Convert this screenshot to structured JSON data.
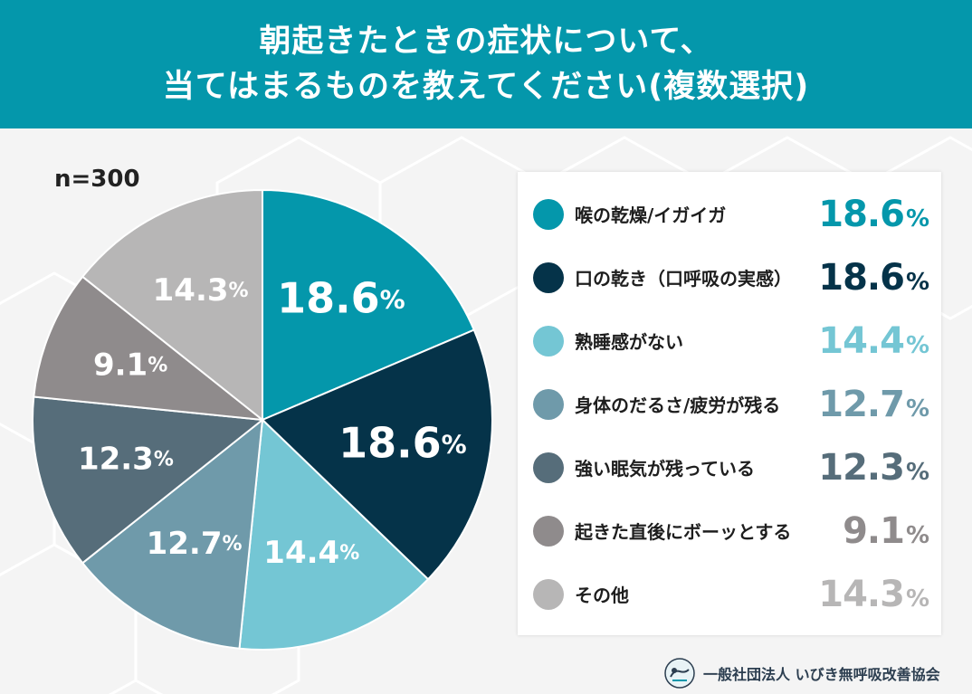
{
  "header": {
    "line1": "朝起きたときの症状について、",
    "line2": "当てはまるものを教えてください(複数選択)"
  },
  "sample": "n=300",
  "colors": {
    "header_bg": "#0497ab",
    "series": [
      "#0497ab",
      "#053349",
      "#74c6d4",
      "#6f9aaa",
      "#566d7a",
      "#8f8b8c",
      "#b7b6b6"
    ]
  },
  "chart_data": {
    "type": "pie",
    "title": "朝起きたときの症状について、当てはまるものを教えてください(複数選択)",
    "unit": "%",
    "categories": [
      "喉の乾燥/イガイガ",
      "口の乾き（口呼吸の実感）",
      "熟睡感がない",
      "身体のだるさ/疲労が残る",
      "強い眠気が残っている",
      "起きた直後にボーッとする",
      "その他"
    ],
    "values": [
      18.6,
      18.6,
      14.4,
      12.7,
      12.3,
      9.1,
      14.3
    ],
    "legend_position": "right"
  },
  "legend": {
    "items": [
      {
        "label": "喉の乾燥/イガイガ",
        "value": "18.6",
        "pct": "%"
      },
      {
        "label": "口の乾き（口呼吸の実感）",
        "value": "18.6",
        "pct": "%"
      },
      {
        "label": "熟睡感がない",
        "value": "14.4",
        "pct": "%"
      },
      {
        "label": "身体のだるさ/疲労が残る",
        "value": "12.7",
        "pct": "%"
      },
      {
        "label": "強い眠気が残っている",
        "value": "12.3",
        "pct": "%"
      },
      {
        "label": "起きた直後にボーッとする",
        "value": "9.1",
        "pct": "%"
      },
      {
        "label": "その他",
        "value": "14.3",
        "pct": "%"
      }
    ]
  },
  "footer": {
    "org": "一般社団法人 いびき無呼吸改善協会",
    "logo_icon": "sleeping-person-icon"
  }
}
